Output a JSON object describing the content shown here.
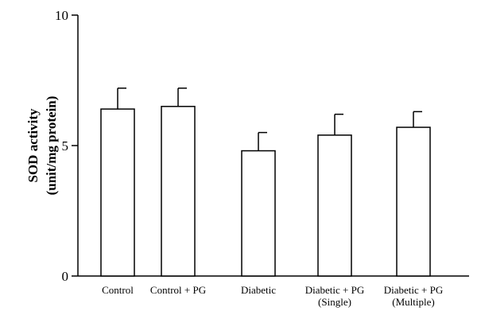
{
  "chart_data": {
    "type": "bar",
    "categories": [
      [
        "Control"
      ],
      [
        "Control + PG"
      ],
      [
        "Diabetic"
      ],
      [
        "Diabetic + PG",
        "(Single)"
      ],
      [
        "Diabetic + PG",
        "(Multiple)"
      ]
    ],
    "values": [
      6.4,
      6.5,
      4.8,
      5.4,
      5.7
    ],
    "errors": [
      0.8,
      0.7,
      0.7,
      0.8,
      0.6
    ],
    "ylabel": [
      "SOD activity",
      "(unit/mg protein)"
    ],
    "yticks": [
      0,
      5,
      10
    ],
    "ytick_labels": [
      "0",
      "5",
      "10"
    ],
    "ylim": [
      0,
      10
    ],
    "bar_fill": "#ffffff",
    "bar_stroke": "#000000",
    "grid": false
  }
}
